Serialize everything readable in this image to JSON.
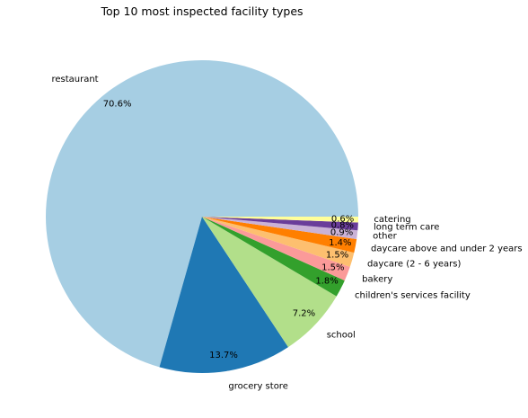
{
  "chart_data": {
    "type": "pie",
    "title": "Top 10 most inspected facility types",
    "start_angle_deg": 0,
    "direction": "counterclockwise",
    "slices": [
      {
        "label": "restaurant",
        "value": 70.6,
        "pct_label": "70.6%",
        "color": "#a6cee3"
      },
      {
        "label": "grocery store",
        "value": 13.7,
        "pct_label": "13.7%",
        "color": "#1f78b4"
      },
      {
        "label": "school",
        "value": 7.2,
        "pct_label": "7.2%",
        "color": "#b2df8a"
      },
      {
        "label": "children's services facility",
        "value": 1.8,
        "pct_label": "1.8%",
        "color": "#33a02c"
      },
      {
        "label": "bakery",
        "value": 1.5,
        "pct_label": "1.5%",
        "color": "#fb9a99"
      },
      {
        "label": "daycare (2 - 6 years)",
        "value": 1.5,
        "pct_label": "1.5%",
        "color": "#fdbf6f"
      },
      {
        "label": "daycare above and under 2 years",
        "value": 1.4,
        "pct_label": "1.4%",
        "color": "#ff7f00"
      },
      {
        "label": "other",
        "value": 0.9,
        "pct_label": "0.9%",
        "color": "#cab2d6"
      },
      {
        "label": "long term care",
        "value": 0.8,
        "pct_label": "0.8%",
        "color": "#6a3d9a"
      },
      {
        "label": "catering",
        "value": 0.6,
        "pct_label": "0.6%",
        "color": "#ffff99"
      }
    ]
  }
}
